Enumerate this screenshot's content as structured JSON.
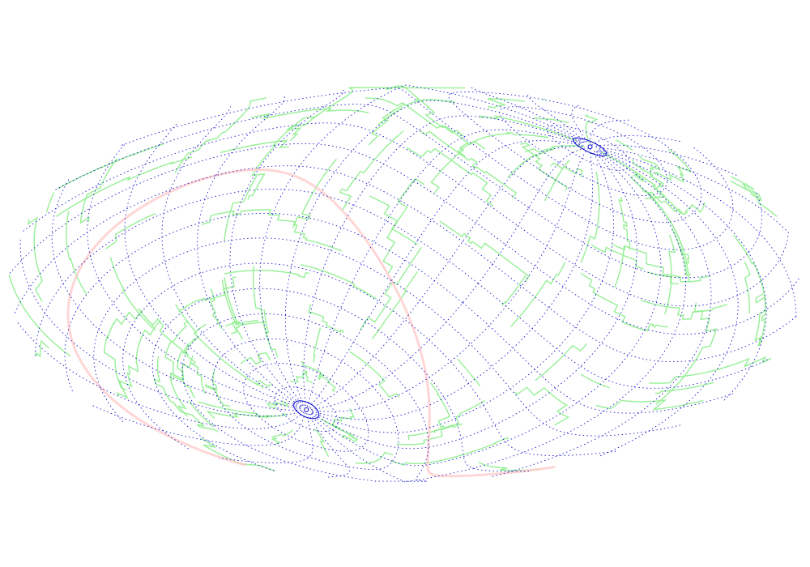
{
  "map": {
    "projection": "aitoff-hammer-ellipse",
    "background_color": "#ffffff",
    "graticule": {
      "color": "#0000cc",
      "style": "dotted",
      "parallel_step_deg": 10,
      "meridian_step_deg": 15
    },
    "poles": [
      {
        "name": "north-pole",
        "lon": 120,
        "lat": 52
      },
      {
        "name": "south-pole",
        "lon": -60,
        "lat": -52
      }
    ],
    "boundaries": {
      "color": "#90ee90",
      "style": "solid-stepped"
    },
    "galactic_plane": {
      "color": "#ffcccc",
      "style": "solid"
    }
  }
}
